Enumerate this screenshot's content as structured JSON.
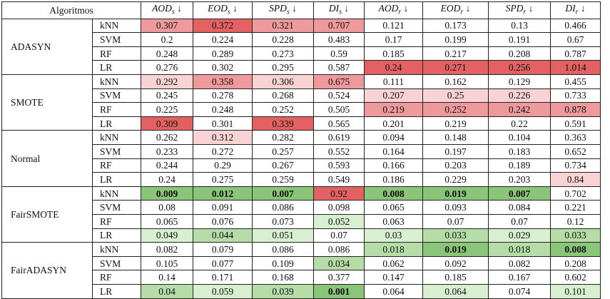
{
  "header": {
    "algorithms_label": "Algoritmos",
    "metrics": [
      "AOD_s ↓",
      "EOD_s ↓",
      "SPD_s ↓",
      "DI_s ↓",
      "AOD_r ↓",
      "EOD_r ↓",
      "SPD_r ↓",
      "DI_r ↓"
    ]
  },
  "colors": {
    "cr1": "#f9d3d3",
    "cr2": "#ee9a9c",
    "cr3": "#e36163",
    "cg1": "#d9efd2",
    "cg2": "#b6dca7",
    "cg3": "#8bc57a"
  },
  "groups": [
    {
      "name": "ADASYN",
      "rows": [
        {
          "alg": "kNN",
          "cells": [
            [
              "0.307",
              "cr2"
            ],
            [
              "0.372",
              "cr3"
            ],
            [
              "0.321",
              "cr2"
            ],
            [
              "0.707",
              "cr2"
            ],
            [
              "0.121",
              ""
            ],
            [
              "0.173",
              ""
            ],
            [
              "0.13",
              ""
            ],
            [
              "0.466",
              ""
            ]
          ]
        },
        {
          "alg": "SVM",
          "cells": [
            [
              "0.2",
              ""
            ],
            [
              "0.224",
              ""
            ],
            [
              "0.228",
              ""
            ],
            [
              "0.483",
              ""
            ],
            [
              "0.17",
              ""
            ],
            [
              "0.199",
              ""
            ],
            [
              "0.191",
              ""
            ],
            [
              "0.67",
              ""
            ]
          ]
        },
        {
          "alg": "RF",
          "cells": [
            [
              "0.248",
              ""
            ],
            [
              "0.289",
              ""
            ],
            [
              "0.273",
              ""
            ],
            [
              "0.59",
              ""
            ],
            [
              "0.185",
              ""
            ],
            [
              "0.217",
              ""
            ],
            [
              "0.208",
              ""
            ],
            [
              "0.787",
              ""
            ]
          ]
        },
        {
          "alg": "LR",
          "cells": [
            [
              "0.276",
              ""
            ],
            [
              "0.302",
              ""
            ],
            [
              "0.295",
              ""
            ],
            [
              "0.587",
              ""
            ],
            [
              "0.24",
              "cr3"
            ],
            [
              "0.271",
              "cr3"
            ],
            [
              "0.256",
              "cr3"
            ],
            [
              "1.014",
              "cr3"
            ]
          ]
        }
      ]
    },
    {
      "name": "SMOTE",
      "rows": [
        {
          "alg": "kNN",
          "cells": [
            [
              "0.292",
              "cr1"
            ],
            [
              "0.358",
              "cr2"
            ],
            [
              "0.306",
              "cr1"
            ],
            [
              "0.675",
              "cr2"
            ],
            [
              "0.111",
              ""
            ],
            [
              "0.162",
              ""
            ],
            [
              "0.129",
              ""
            ],
            [
              "0.455",
              ""
            ]
          ]
        },
        {
          "alg": "SVM",
          "cells": [
            [
              "0.245",
              ""
            ],
            [
              "0.278",
              ""
            ],
            [
              "0.268",
              ""
            ],
            [
              "0.524",
              ""
            ],
            [
              "0.207",
              "cr1"
            ],
            [
              "0.25",
              "cr1"
            ],
            [
              "0.226",
              "cr1"
            ],
            [
              "0.733",
              ""
            ]
          ]
        },
        {
          "alg": "RF",
          "cells": [
            [
              "0.225",
              ""
            ],
            [
              "0.248",
              ""
            ],
            [
              "0.252",
              ""
            ],
            [
              "0.505",
              ""
            ],
            [
              "0.219",
              "cr2"
            ],
            [
              "0.252",
              "cr2"
            ],
            [
              "0.242",
              "cr2"
            ],
            [
              "0.878",
              "cr2"
            ]
          ]
        },
        {
          "alg": "LR",
          "cells": [
            [
              "0.309",
              "cr3"
            ],
            [
              "0.301",
              ""
            ],
            [
              "0.339",
              "cr3"
            ],
            [
              "0.565",
              ""
            ],
            [
              "0.201",
              ""
            ],
            [
              "0.219",
              ""
            ],
            [
              "0.22",
              ""
            ],
            [
              "0.591",
              ""
            ]
          ]
        }
      ]
    },
    {
      "name": "Normal",
      "rows": [
        {
          "alg": "kNN",
          "cells": [
            [
              "0.262",
              ""
            ],
            [
              "0.312",
              "cr1"
            ],
            [
              "0.282",
              ""
            ],
            [
              "0.619",
              ""
            ],
            [
              "0.094",
              ""
            ],
            [
              "0.148",
              ""
            ],
            [
              "0.104",
              ""
            ],
            [
              "0.363",
              ""
            ]
          ]
        },
        {
          "alg": "SVM",
          "cells": [
            [
              "0.233",
              ""
            ],
            [
              "0.272",
              ""
            ],
            [
              "0.257",
              ""
            ],
            [
              "0.552",
              ""
            ],
            [
              "0.164",
              ""
            ],
            [
              "0.197",
              ""
            ],
            [
              "0.183",
              ""
            ],
            [
              "0.652",
              ""
            ]
          ]
        },
        {
          "alg": "RF",
          "cells": [
            [
              "0.244",
              ""
            ],
            [
              "0.29",
              ""
            ],
            [
              "0.267",
              ""
            ],
            [
              "0.593",
              ""
            ],
            [
              "0.166",
              ""
            ],
            [
              "0.203",
              ""
            ],
            [
              "0.189",
              ""
            ],
            [
              "0.734",
              ""
            ]
          ]
        },
        {
          "alg": "LR",
          "cells": [
            [
              "0.24",
              ""
            ],
            [
              "0.275",
              ""
            ],
            [
              "0.259",
              ""
            ],
            [
              "0.549",
              ""
            ],
            [
              "0.186",
              ""
            ],
            [
              "0.229",
              ""
            ],
            [
              "0.203",
              ""
            ],
            [
              "0.84",
              "cr1"
            ]
          ]
        }
      ]
    },
    {
      "name": "FairSMOTE",
      "rows": [
        {
          "alg": "kNN",
          "cells": [
            [
              "0.009",
              "cg3 bold"
            ],
            [
              "0.012",
              "cg3 bold"
            ],
            [
              "0.007",
              "cg3 bold"
            ],
            [
              "0.92",
              "cr3"
            ],
            [
              "0.008",
              "cg3 bold"
            ],
            [
              "0.019",
              "cg3 bold"
            ],
            [
              "0.007",
              "cg3 bold"
            ],
            [
              "0.702",
              ""
            ]
          ]
        },
        {
          "alg": "SVM",
          "cells": [
            [
              "0.08",
              ""
            ],
            [
              "0.091",
              ""
            ],
            [
              "0.086",
              ""
            ],
            [
              "0.098",
              ""
            ],
            [
              "0.065",
              ""
            ],
            [
              "0.093",
              ""
            ],
            [
              "0.084",
              ""
            ],
            [
              "0.221",
              ""
            ]
          ]
        },
        {
          "alg": "RF",
          "cells": [
            [
              "0.065",
              ""
            ],
            [
              "0.076",
              ""
            ],
            [
              "0.073",
              ""
            ],
            [
              "0.052",
              "cg1"
            ],
            [
              "0.063",
              ""
            ],
            [
              "0.07",
              ""
            ],
            [
              "0.07",
              ""
            ],
            [
              "0.12",
              ""
            ]
          ]
        },
        {
          "alg": "LR",
          "cells": [
            [
              "0.049",
              "cg1"
            ],
            [
              "0.044",
              "cg2"
            ],
            [
              "0.051",
              "cg1"
            ],
            [
              "0.07",
              ""
            ],
            [
              "0.03",
              "cg1"
            ],
            [
              "0.033",
              "cg2"
            ],
            [
              "0.029",
              "cg1"
            ],
            [
              "0.033",
              "cg2"
            ]
          ]
        }
      ]
    },
    {
      "name": "FairADASYN",
      "rows": [
        {
          "alg": "kNN",
          "cells": [
            [
              "0.082",
              ""
            ],
            [
              "0.079",
              ""
            ],
            [
              "0.086",
              ""
            ],
            [
              "0.086",
              ""
            ],
            [
              "0.018",
              "cg2"
            ],
            [
              "0.019",
              "cg3 bold"
            ],
            [
              "0.018",
              "cg2"
            ],
            [
              "0.008",
              "cg3 bold"
            ]
          ]
        },
        {
          "alg": "SVM",
          "cells": [
            [
              "0.105",
              ""
            ],
            [
              "0.077",
              ""
            ],
            [
              "0.109",
              ""
            ],
            [
              "0.034",
              "cg2"
            ],
            [
              "0.062",
              ""
            ],
            [
              "0.092",
              ""
            ],
            [
              "0.082",
              ""
            ],
            [
              "0.208",
              ""
            ]
          ]
        },
        {
          "alg": "RF",
          "cells": [
            [
              "0.14",
              ""
            ],
            [
              "0.171",
              ""
            ],
            [
              "0.168",
              ""
            ],
            [
              "0.377",
              ""
            ],
            [
              "0.147",
              ""
            ],
            [
              "0.185",
              ""
            ],
            [
              "0.167",
              ""
            ],
            [
              "0.602",
              ""
            ]
          ]
        },
        {
          "alg": "LR",
          "cells": [
            [
              "0.04",
              "cg2"
            ],
            [
              "0.059",
              "cg1"
            ],
            [
              "0.039",
              "cg2"
            ],
            [
              "0.001",
              "cg3 bold"
            ],
            [
              "0.064",
              ""
            ],
            [
              "0.064",
              "cg1"
            ],
            [
              "0.074",
              ""
            ],
            [
              "0.101",
              "cg1"
            ]
          ]
        }
      ]
    }
  ]
}
